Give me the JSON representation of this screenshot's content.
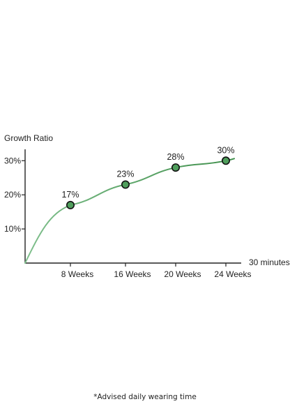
{
  "chart_data": {
    "type": "line",
    "ylabel": "Growth Ratio",
    "xlabel": "30 minutes",
    "categories": [
      "8 Weeks",
      "16 Weeks",
      "20 Weeks",
      "24 Weeks"
    ],
    "values": [
      17,
      23,
      28,
      30
    ],
    "data_labels": [
      "17%",
      "23%",
      "28%",
      "30%"
    ],
    "yticks": [
      {
        "value": 10,
        "label": "10%"
      },
      {
        "value": 20,
        "label": "20%"
      },
      {
        "value": 30,
        "label": "30%"
      }
    ],
    "ylim": [
      0,
      34
    ],
    "grid": false,
    "line_color": "#7fbf8c",
    "marker_color": "#4f9e5c"
  },
  "footnote": "*Advised daily wearing time"
}
